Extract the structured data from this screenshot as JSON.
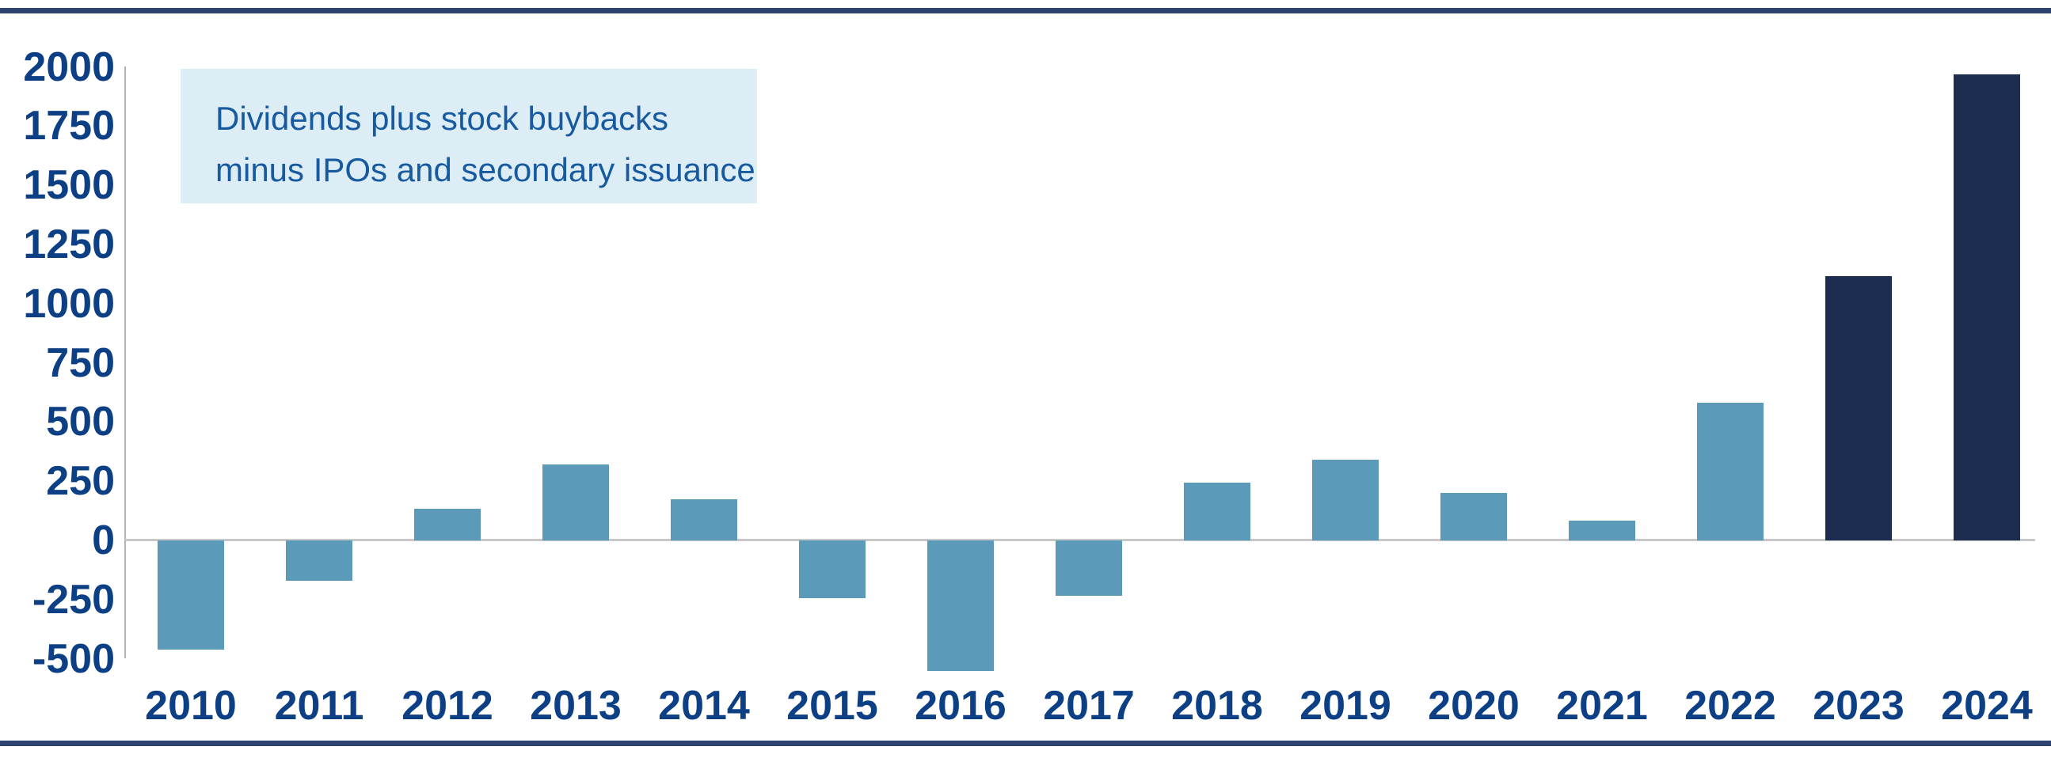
{
  "page": {
    "background_color": "#ffffff"
  },
  "borders": {
    "top_color": "#2e4370",
    "bottom_color": "#2e4370"
  },
  "annotation": {
    "line1": "Dividends plus stock buybacks",
    "line2": "minus IPOs and secondary issuance",
    "background_color": "#ddedf6",
    "text_color": "#175aa0"
  },
  "chart_data": {
    "type": "bar",
    "title": "",
    "xlabel": "",
    "ylabel": "",
    "categories": [
      "2010",
      "2011",
      "2012",
      "2013",
      "2014",
      "2015",
      "2016",
      "2017",
      "2018",
      "2019",
      "2020",
      "2021",
      "2022",
      "2023",
      "2024"
    ],
    "values": [
      -460,
      -170,
      135,
      320,
      175,
      -245,
      -550,
      -235,
      245,
      340,
      200,
      85,
      580,
      1115,
      1970
    ],
    "ylim": [
      -600,
      2000
    ],
    "y_ticks": [
      2000,
      1750,
      1500,
      1250,
      1000,
      750,
      500,
      250,
      0,
      -250,
      -500
    ],
    "grid": "off",
    "legend": "none",
    "bar_color_default": "#5b9ab8",
    "bar_color_highlight": "#1d2d50",
    "highlight_categories": [
      "2023",
      "2024"
    ],
    "axis_label_color": "#0d3f85",
    "zero_line_color": "#c8c8c8",
    "axis_line_color": "#b4b4b4"
  }
}
